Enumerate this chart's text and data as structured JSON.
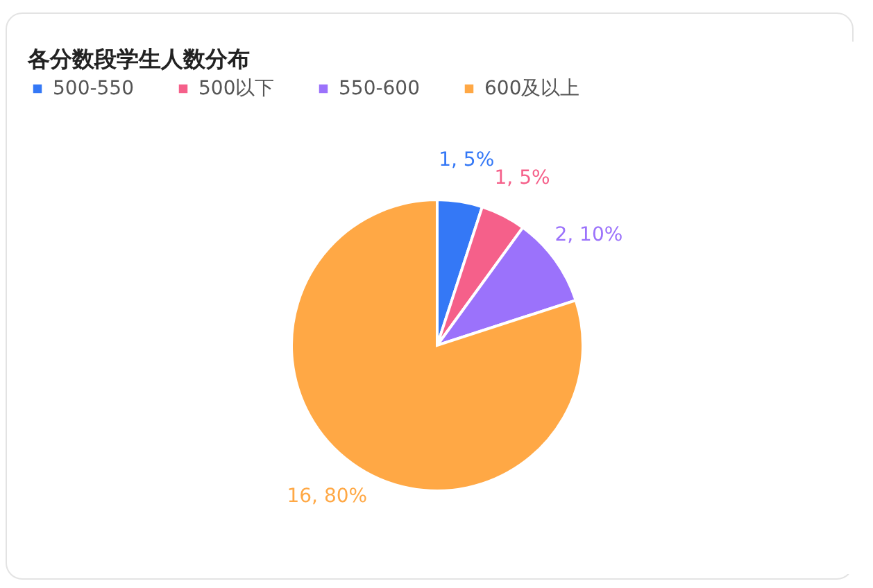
{
  "chart_data": {
    "type": "pie",
    "title": "各分数段学生人数分布",
    "categories": [
      "500-550",
      "500以下",
      "550-600",
      "600及以上"
    ],
    "values": [
      1,
      1,
      2,
      16
    ],
    "colors": [
      "#3478f6",
      "#f5608a",
      "#9b72fb",
      "#ffa845"
    ],
    "value_labels": [
      "1, 5%",
      "1, 5%",
      "2, 10%",
      "16, 80%"
    ],
    "legend": "top"
  }
}
